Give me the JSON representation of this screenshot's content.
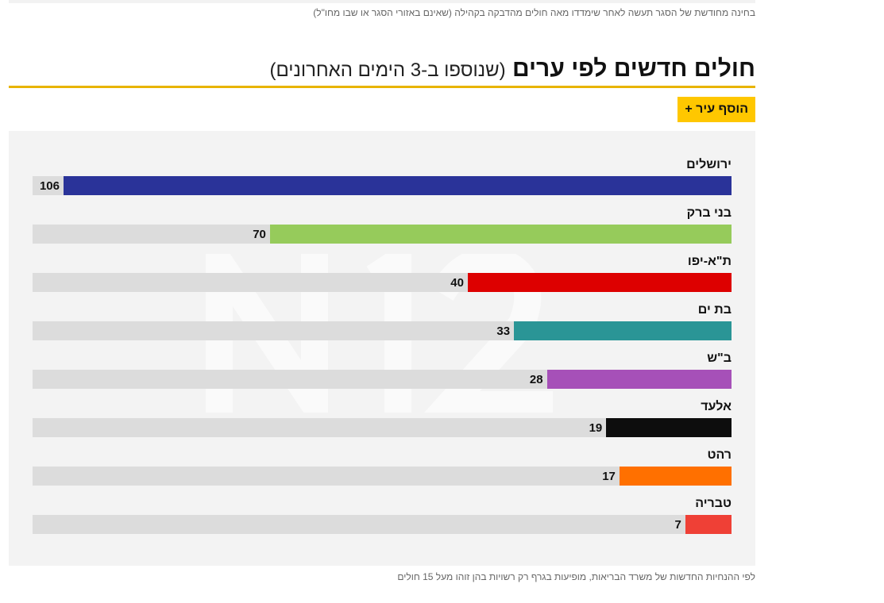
{
  "top_note": "בחינה מחודשת של הסגר תעשה לאחר שימדדו מאה חולים מהדבקה בקהילה (שאינם באזורי הסגר או שבו מחו\"ל)",
  "header": {
    "title": "חולים חדשים לפי ערים",
    "subtitle": "(שנוספו ב-3 הימים האחרונים)",
    "add_city_label": "הוסף עיר +"
  },
  "watermark": "N12",
  "bottom_note": "לפי ההנחיות החדשות של משרד הבריאות, מופיעות בגרף רק רשויות בהן זוהו מעל 15 חולים",
  "chart_data": {
    "type": "bar",
    "orientation": "horizontal",
    "title": "חולים חדשים לפי ערים",
    "xlim": [
      0,
      106
    ],
    "categories": [
      "ירושלים",
      "בני ברק",
      "ת\"א-יפו",
      "בת ים",
      "ב\"ש",
      "אלעד",
      "רהט",
      "טבריה"
    ],
    "values": [
      106,
      70,
      40,
      33,
      28,
      19,
      17,
      7
    ],
    "colors": [
      "#2a3399",
      "#96cb5b",
      "#dd0000",
      "#2a9596",
      "#a650b8",
      "#0d0d0d",
      "#ff7000",
      "#ef4036"
    ]
  }
}
